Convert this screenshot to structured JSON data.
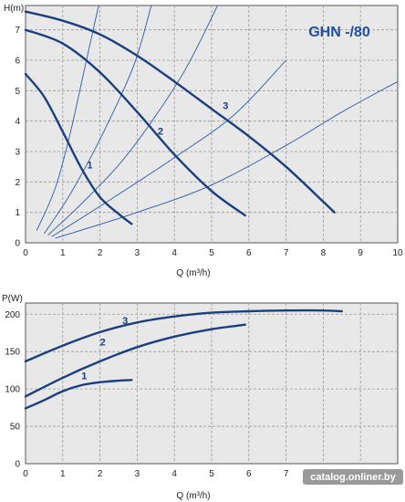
{
  "colors": {
    "plot_bg": "#e8e8e8",
    "grid": "#9a9a9a",
    "pump_curve": "#1a3f7f",
    "system_curve": "#2b5aa8",
    "model_text": "#1f4fa0",
    "watermark_bg": "#9a9a9a"
  },
  "model_label": "GHN -/80",
  "watermark": "catalog.onliner.by",
  "chart_data": [
    {
      "type": "line",
      "id": "head",
      "ylabel": "H(m)",
      "xlabel": "Q (m³/h)",
      "xlim": [
        0,
        10
      ],
      "ylim": [
        0,
        7.8
      ],
      "xticks": [
        0,
        1,
        2,
        3,
        4,
        5,
        6,
        7,
        8,
        9,
        10
      ],
      "yticks": [
        0,
        1,
        2,
        3,
        4,
        5,
        6,
        7
      ],
      "grid": true,
      "series": [
        {
          "name": "1",
          "label_at": [
            1.65,
            2.45
          ],
          "points": [
            [
              0,
              5.55
            ],
            [
              0.5,
              4.8
            ],
            [
              1,
              3.65
            ],
            [
              1.5,
              2.45
            ],
            [
              2,
              1.5
            ],
            [
              2.5,
              0.95
            ],
            [
              2.85,
              0.62
            ]
          ]
        },
        {
          "name": "2",
          "label_at": [
            3.55,
            3.55
          ],
          "points": [
            [
              0,
              7.0
            ],
            [
              1,
              6.55
            ],
            [
              2,
              5.6
            ],
            [
              3,
              4.3
            ],
            [
              4,
              2.9
            ],
            [
              5,
              1.7
            ],
            [
              5.9,
              0.9
            ]
          ]
        },
        {
          "name": "3",
          "label_at": [
            5.3,
            4.4
          ],
          "points": [
            [
              0,
              7.6
            ],
            [
              1,
              7.3
            ],
            [
              2,
              6.85
            ],
            [
              3,
              6.15
            ],
            [
              4,
              5.3
            ],
            [
              5,
              4.4
            ],
            [
              6,
              3.5
            ],
            [
              7,
              2.5
            ],
            [
              8,
              1.35
            ],
            [
              8.3,
              1.0
            ]
          ]
        }
      ],
      "system_curves": [
        {
          "points": [
            [
              0.3,
              0.4
            ],
            [
              0.8,
              1.8
            ],
            [
              1.2,
              3.6
            ],
            [
              1.6,
              5.8
            ],
            [
              2.0,
              8.0
            ]
          ]
        },
        {
          "points": [
            [
              0.5,
              0.3
            ],
            [
              1.2,
              1.6
            ],
            [
              2.0,
              3.4
            ],
            [
              2.9,
              5.8
            ],
            [
              3.4,
              7.9
            ]
          ]
        },
        {
          "points": [
            [
              0.6,
              0.25
            ],
            [
              1.6,
              1.4
            ],
            [
              2.8,
              3.0
            ],
            [
              4.2,
              5.5
            ],
            [
              5.2,
              7.9
            ]
          ]
        },
        {
          "points": [
            [
              0.7,
              0.2
            ],
            [
              2.0,
              1.2
            ],
            [
              4.0,
              2.8
            ],
            [
              5.6,
              4.2
            ],
            [
              7.0,
              6.0
            ]
          ]
        },
        {
          "points": [
            [
              0.8,
              0.15
            ],
            [
              3.0,
              1.0
            ],
            [
              5.0,
              1.9
            ],
            [
              7.0,
              3.2
            ],
            [
              8.5,
              4.3
            ],
            [
              10,
              5.3
            ]
          ]
        }
      ]
    },
    {
      "type": "line",
      "id": "power",
      "ylabel": "P(W)",
      "xlabel": "Q (m³/h)",
      "xlim": [
        0,
        10
      ],
      "ylim": [
        0,
        215
      ],
      "xticks": [
        0,
        1,
        2,
        3,
        4,
        5,
        6,
        7,
        8,
        9,
        10
      ],
      "yticks": [
        0,
        50,
        100,
        150,
        200
      ],
      "grid": true,
      "series": [
        {
          "name": "1",
          "label_at": [
            1.5,
            113
          ],
          "points": [
            [
              0,
              74
            ],
            [
              0.5,
              85
            ],
            [
              1,
              97
            ],
            [
              1.5,
              105
            ],
            [
              2,
              109
            ],
            [
              2.5,
              111
            ],
            [
              2.85,
              112
            ]
          ]
        },
        {
          "name": "2",
          "label_at": [
            2.0,
            158
          ],
          "points": [
            [
              0,
              90
            ],
            [
              1,
              115
            ],
            [
              2,
              137
            ],
            [
              3,
              156
            ],
            [
              4,
              170
            ],
            [
              5,
              180
            ],
            [
              5.9,
              186
            ]
          ]
        },
        {
          "name": "3",
          "label_at": [
            2.6,
            187
          ],
          "points": [
            [
              0,
              137
            ],
            [
              1,
              158
            ],
            [
              2,
              176
            ],
            [
              3,
              189
            ],
            [
              4,
              197
            ],
            [
              5,
              202
            ],
            [
              6,
              204
            ],
            [
              7,
              205
            ],
            [
              8,
              205
            ],
            [
              8.5,
              204
            ]
          ]
        }
      ]
    }
  ]
}
